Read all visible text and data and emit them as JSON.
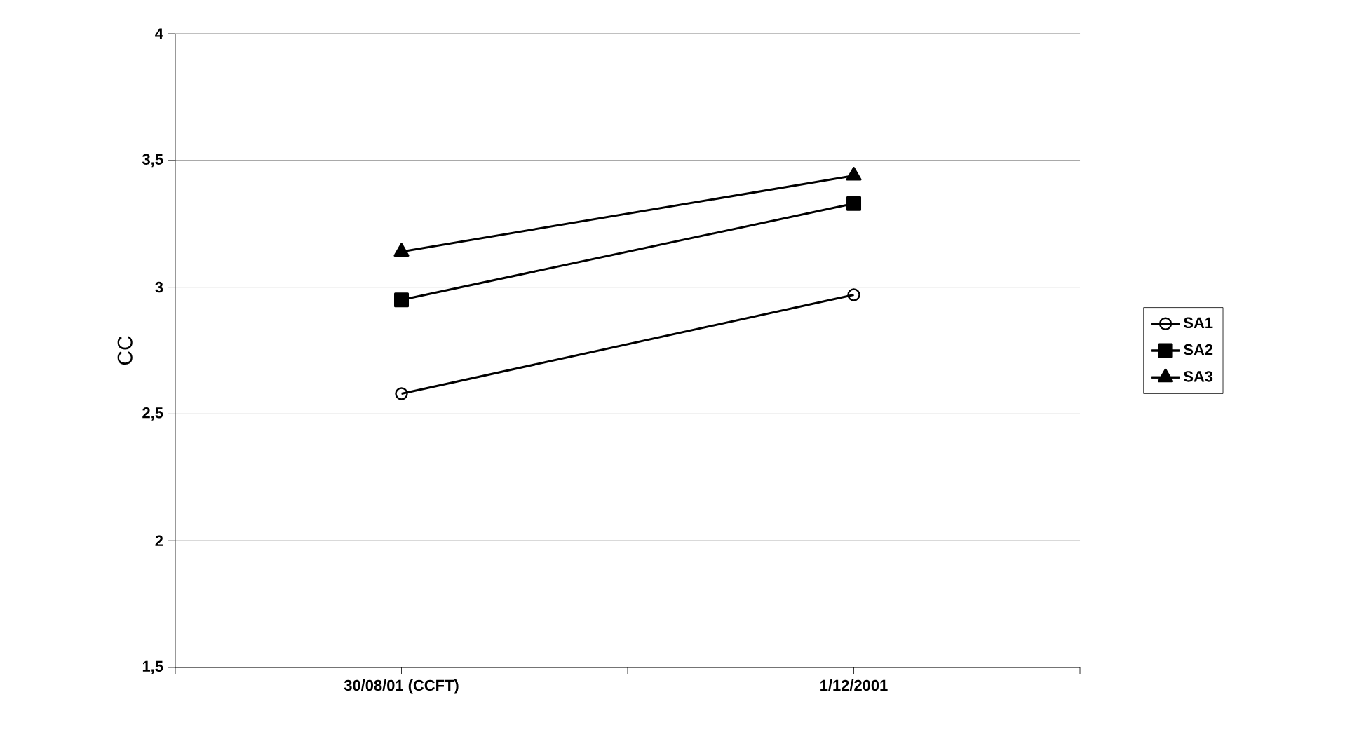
{
  "chart_data": {
    "type": "line",
    "ylabel": "CC",
    "categories": [
      "30/08/01 (CCFT)",
      "1/12/2001"
    ],
    "series": [
      {
        "name": "SA1",
        "color": "#000000",
        "marker": "circle",
        "values": [
          2.58,
          2.97
        ]
      },
      {
        "name": "SA2",
        "color": "#000000",
        "marker": "square",
        "values": [
          2.95,
          3.33
        ]
      },
      {
        "name": "SA3",
        "color": "#000000",
        "marker": "triangle",
        "values": [
          3.14,
          3.44
        ]
      }
    ],
    "ylim": [
      1.5,
      4
    ],
    "yticks": [
      {
        "value": 1.5,
        "label": "1,5"
      },
      2,
      {
        "value": 2.5,
        "label": "2,5"
      },
      3,
      {
        "value": 3.5,
        "label": "3,5"
      },
      4
    ],
    "grid": "y",
    "legend": "right",
    "line_style": "solid"
  }
}
